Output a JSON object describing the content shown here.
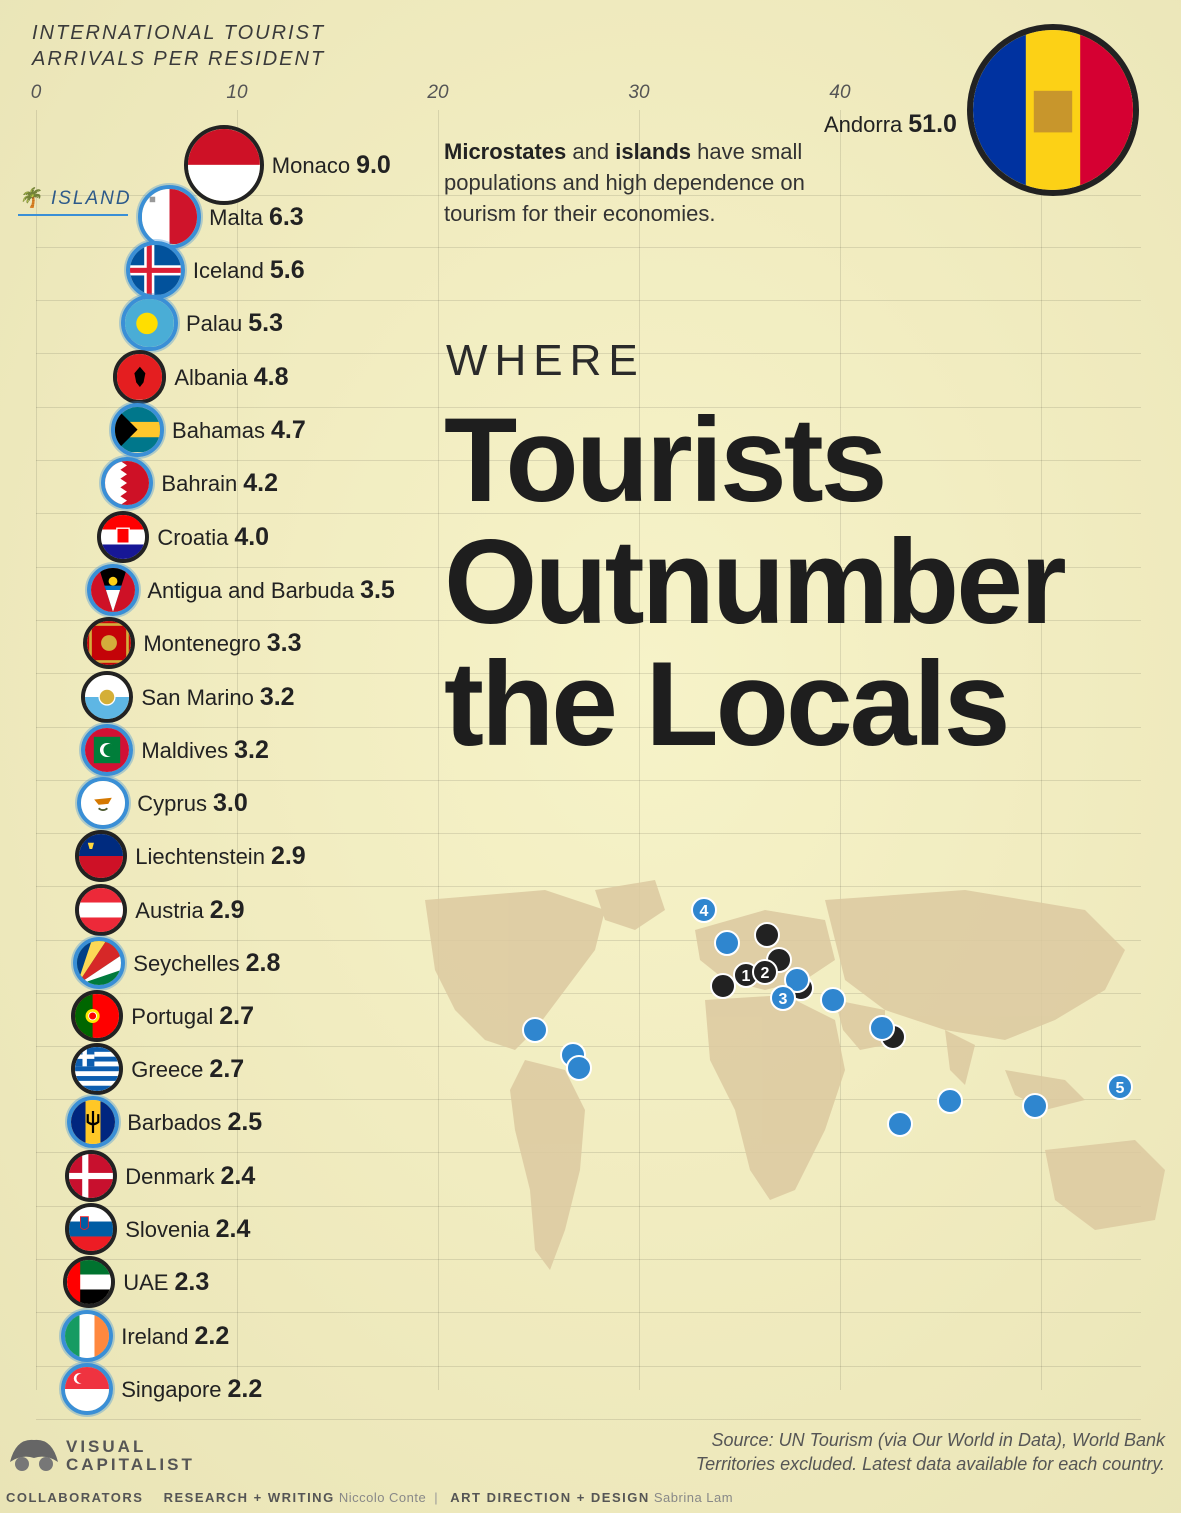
{
  "axis_title": "INTERNATIONAL TOURIST ARRIVALS PER RESIDENT",
  "island_tag": "ISLAND",
  "note": {
    "bold1": "Microstates",
    "mid1": " and ",
    "bold2": "islands",
    "rest": " have small populations and high dependence on tourism for their economies."
  },
  "title": {
    "line1": "WHERE",
    "line2": "Tourists",
    "line3": "Outnumber",
    "line4": "the Locals"
  },
  "source": {
    "line1": "Source: UN Tourism (via Our World in Data), World Bank",
    "line2": "Territories excluded. Latest data available for each country."
  },
  "logo": {
    "line1": "VISUAL",
    "line2": "CAPITALIST"
  },
  "credits": {
    "collab": "COLLABORATORS",
    "research_label": "RESEARCH + WRITING",
    "research_name": "Niccolo Conte",
    "art_label": "ART DIRECTION + DESIGN",
    "art_name": "Sabrina Lam"
  },
  "map_markers": [
    "1",
    "2",
    "3",
    "4",
    "5"
  ],
  "colors": {
    "island": "#3a8fd6",
    "microstate": "#222222",
    "background": "#f3efc4"
  },
  "chart_data": {
    "type": "bar",
    "xlabel": "INTERNATIONAL TOURIST ARRIVALS PER RESIDENT",
    "xlim": [
      0,
      51
    ],
    "xticks": [
      0,
      10,
      20,
      30,
      40
    ],
    "tick_labels": [
      "0",
      "10",
      "20",
      "30",
      "40"
    ],
    "grid": true,
    "categories": [
      "Andorra",
      "Monaco",
      "Malta",
      "Iceland",
      "Palau",
      "Albania",
      "Bahamas",
      "Bahrain",
      "Croatia",
      "Antigua and Barbuda",
      "Montenegro",
      "San Marino",
      "Maldives",
      "Cyprus",
      "Liechtenstein",
      "Austria",
      "Seychelles",
      "Portugal",
      "Greece",
      "Barbados",
      "Denmark",
      "Slovenia",
      "UAE",
      "Ireland",
      "Singapore"
    ],
    "values": [
      51.0,
      9.0,
      6.3,
      5.6,
      5.3,
      4.8,
      4.7,
      4.2,
      4.0,
      3.5,
      3.3,
      3.2,
      3.2,
      3.0,
      2.9,
      2.9,
      2.8,
      2.7,
      2.7,
      2.5,
      2.4,
      2.4,
      2.3,
      2.2,
      2.2
    ],
    "value_labels": [
      "51.0",
      "9.0",
      "6.3",
      "5.6",
      "5.3",
      "4.8",
      "4.7",
      "4.2",
      "4.0",
      "3.5",
      "3.3",
      "3.2",
      "3.2",
      "3.0",
      "2.9",
      "2.9",
      "2.8",
      "2.7",
      "2.7",
      "2.5",
      "2.4",
      "2.4",
      "2.3",
      "2.2",
      "2.2"
    ],
    "island": [
      false,
      false,
      true,
      true,
      true,
      false,
      true,
      true,
      false,
      true,
      false,
      false,
      true,
      true,
      false,
      false,
      true,
      false,
      false,
      true,
      false,
      false,
      false,
      true,
      true
    ]
  }
}
